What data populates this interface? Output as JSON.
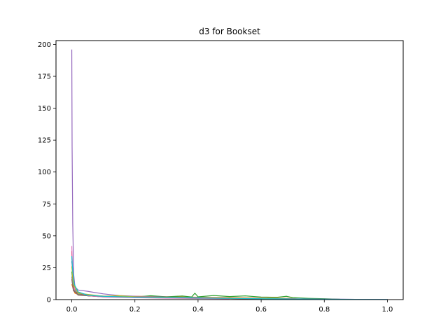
{
  "chart_data": {
    "type": "line",
    "title": "d3 for Bookset",
    "xlabel": "",
    "ylabel": "",
    "xlim": [
      -0.05,
      1.05
    ],
    "ylim": [
      0,
      203
    ],
    "xticks": [
      0.0,
      0.2,
      0.4,
      0.6,
      0.8,
      1.0
    ],
    "xtick_labels": [
      "0.0",
      "0.2",
      "0.4",
      "0.6",
      "0.8",
      "1.0"
    ],
    "yticks": [
      0,
      25,
      50,
      75,
      100,
      125,
      150,
      175,
      200
    ],
    "ytick_labels": [
      "0",
      "25",
      "50",
      "75",
      "100",
      "125",
      "150",
      "175",
      "200"
    ],
    "grid": false,
    "legend": "none",
    "series": [
      {
        "color": "#1f77b4",
        "points": [
          [
            0.0,
            30
          ],
          [
            0.005,
            18
          ],
          [
            0.01,
            10
          ],
          [
            0.02,
            5
          ],
          [
            0.05,
            3
          ],
          [
            0.1,
            2.2
          ],
          [
            0.2,
            1.6
          ],
          [
            0.3,
            1.3
          ],
          [
            0.4,
            1.1
          ],
          [
            0.5,
            0.9
          ],
          [
            0.6,
            0.7
          ],
          [
            0.7,
            0.5
          ],
          [
            0.8,
            0.35
          ],
          [
            0.9,
            0.2
          ],
          [
            1.0,
            0.1
          ]
        ]
      },
      {
        "color": "#ff7f0e",
        "points": [
          [
            0.0,
            12
          ],
          [
            0.005,
            8
          ],
          [
            0.01,
            5
          ],
          [
            0.03,
            3.5
          ],
          [
            0.1,
            2.8
          ],
          [
            0.2,
            2.6
          ],
          [
            0.3,
            2.3
          ],
          [
            0.4,
            1.9
          ],
          [
            0.5,
            1.6
          ],
          [
            0.6,
            1.2
          ],
          [
            0.7,
            0.9
          ],
          [
            0.72,
            0.5
          ]
        ]
      },
      {
        "color": "#2ca02c",
        "points": [
          [
            0.0,
            22
          ],
          [
            0.005,
            10
          ],
          [
            0.02,
            4
          ],
          [
            0.1,
            2.5
          ],
          [
            0.2,
            2.0
          ],
          [
            0.25,
            3.0
          ],
          [
            0.3,
            2.2
          ],
          [
            0.35,
            2.8
          ],
          [
            0.38,
            2.1
          ],
          [
            0.39,
            5.0
          ],
          [
            0.4,
            2.2
          ],
          [
            0.45,
            3.2
          ],
          [
            0.5,
            2.4
          ],
          [
            0.55,
            2.9
          ],
          [
            0.6,
            2.0
          ],
          [
            0.65,
            1.8
          ],
          [
            0.68,
            2.6
          ],
          [
            0.7,
            1.5
          ],
          [
            0.75,
            1.0
          ],
          [
            0.8,
            0.7
          ],
          [
            0.85,
            0.3
          ]
        ]
      },
      {
        "color": "#d62728",
        "points": [
          [
            0.0,
            38
          ],
          [
            0.003,
            14
          ],
          [
            0.01,
            6
          ],
          [
            0.05,
            3
          ],
          [
            0.1,
            2.2
          ],
          [
            0.2,
            1.8
          ],
          [
            0.3,
            1.4
          ],
          [
            0.4,
            1.2
          ],
          [
            0.5,
            0.9
          ],
          [
            0.6,
            0.6
          ],
          [
            0.7,
            0.3
          ]
        ]
      },
      {
        "color": "#9467bd",
        "points": [
          [
            0.0,
            196
          ],
          [
            0.001,
            120
          ],
          [
            0.003,
            60
          ],
          [
            0.006,
            20
          ],
          [
            0.01,
            10
          ],
          [
            0.02,
            7.5
          ],
          [
            0.05,
            6.5
          ],
          [
            0.1,
            4.5
          ],
          [
            0.15,
            3.2
          ],
          [
            0.2,
            2.6
          ],
          [
            0.3,
            2.0
          ],
          [
            0.4,
            1.6
          ],
          [
            0.5,
            1.2
          ],
          [
            0.6,
            0.9
          ],
          [
            0.7,
            0.6
          ],
          [
            0.8,
            0.4
          ],
          [
            0.9,
            0.2
          ],
          [
            1.0,
            0.1
          ]
        ]
      },
      {
        "color": "#8c564b",
        "points": [
          [
            0.0,
            16
          ],
          [
            0.005,
            7
          ],
          [
            0.02,
            3.5
          ],
          [
            0.1,
            2.2
          ],
          [
            0.2,
            1.7
          ],
          [
            0.3,
            1.3
          ],
          [
            0.4,
            1.0
          ],
          [
            0.5,
            0.8
          ],
          [
            0.6,
            0.5
          ]
        ]
      },
      {
        "color": "#e377c2",
        "points": [
          [
            0.0,
            42
          ],
          [
            0.004,
            15
          ],
          [
            0.01,
            7
          ],
          [
            0.05,
            3.2
          ],
          [
            0.1,
            2.0
          ],
          [
            0.2,
            1.5
          ],
          [
            0.3,
            1.1
          ],
          [
            0.4,
            0.9
          ],
          [
            0.5,
            0.6
          ]
        ]
      },
      {
        "color": "#7f7f7f",
        "points": [
          [
            0.0,
            18
          ],
          [
            0.005,
            8
          ],
          [
            0.02,
            4
          ],
          [
            0.1,
            2.4
          ],
          [
            0.2,
            1.9
          ],
          [
            0.3,
            1.5
          ],
          [
            0.4,
            1.2
          ],
          [
            0.5,
            0.9
          ],
          [
            0.6,
            0.6
          ],
          [
            0.7,
            0.4
          ]
        ]
      },
      {
        "color": "#bcbd22",
        "points": [
          [
            0.0,
            26
          ],
          [
            0.005,
            12
          ],
          [
            0.02,
            5
          ],
          [
            0.1,
            2.6
          ],
          [
            0.15,
            3.0
          ],
          [
            0.2,
            2.2
          ],
          [
            0.3,
            1.8
          ],
          [
            0.4,
            1.4
          ],
          [
            0.5,
            1.1
          ],
          [
            0.6,
            0.8
          ],
          [
            0.7,
            0.5
          ]
        ]
      },
      {
        "color": "#17becf",
        "points": [
          [
            0.0,
            34
          ],
          [
            0.003,
            22
          ],
          [
            0.008,
            12
          ],
          [
            0.02,
            6
          ],
          [
            0.05,
            3.5
          ],
          [
            0.1,
            2.6
          ],
          [
            0.2,
            1.9
          ],
          [
            0.3,
            1.6
          ],
          [
            0.4,
            1.3
          ],
          [
            0.5,
            1.0
          ],
          [
            0.6,
            0.7
          ],
          [
            0.7,
            0.5
          ],
          [
            0.8,
            0.3
          ],
          [
            0.9,
            0.15
          ],
          [
            1.0,
            0.05
          ]
        ]
      }
    ]
  }
}
